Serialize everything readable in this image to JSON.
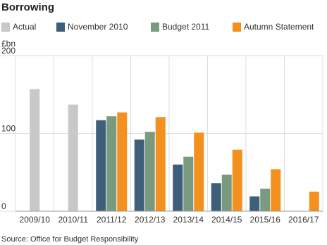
{
  "chart_data": {
    "type": "bar",
    "title": "Borrowing",
    "y_label": "£bn",
    "source": "Source: Office for Budget Responsibility",
    "categories": [
      "2009/10",
      "2010/11",
      "2011/12",
      "2012/13",
      "2013/14",
      "2014/15",
      "2015/16",
      "2016/17"
    ],
    "series": [
      {
        "name": "Actual",
        "color": "#c8c8c8",
        "values": [
          157,
          137,
          null,
          null,
          null,
          null,
          null,
          null
        ]
      },
      {
        "name": "November 2010",
        "color": "#3e5f7a",
        "values": [
          null,
          null,
          117,
          92,
          60,
          36,
          19,
          null
        ]
      },
      {
        "name": "Budget 2011",
        "color": "#7a9a80",
        "values": [
          null,
          null,
          122,
          102,
          70,
          47,
          29,
          null
        ]
      },
      {
        "name": "Autumn Statement",
        "color": "#f4901e",
        "values": [
          null,
          null,
          127,
          121,
          101,
          79,
          54,
          25
        ]
      }
    ],
    "ylim": [
      0,
      200
    ],
    "yticks": [
      0,
      100,
      200
    ],
    "grid": true
  }
}
